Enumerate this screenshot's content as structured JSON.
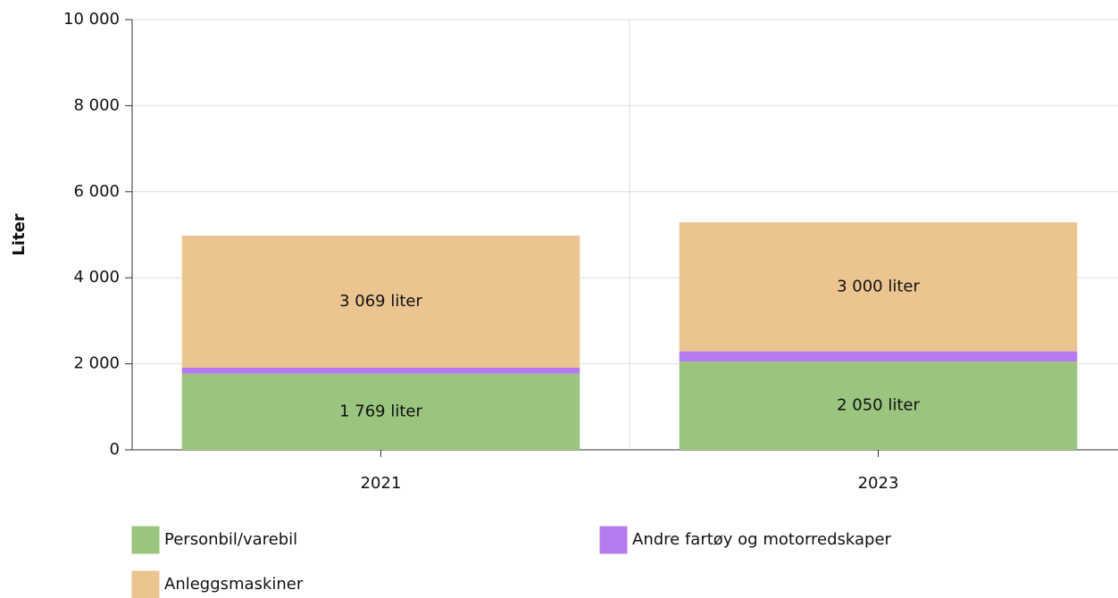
{
  "chart_data": {
    "type": "stacked_bar",
    "y_label": "Liter",
    "categories": [
      "2021",
      "2023"
    ],
    "series": [
      {
        "name": "Personbil/varebil",
        "color": "#9bc47f",
        "values": [
          1769,
          2050
        ],
        "value_labels": [
          "1 769 liter",
          "2 050 liter"
        ]
      },
      {
        "name": "Andre fartøy og motorredskaper",
        "color": "#b57bee",
        "values": [
          141,
          240
        ]
      },
      {
        "name": "Anleggsmaskiner",
        "color": "#ebc490",
        "values": [
          3069,
          3000
        ],
        "value_labels": [
          "3 069 liter",
          "3 000 liter"
        ]
      }
    ],
    "ylim": [
      0,
      10000
    ],
    "yticks": [
      0,
      {
        "value": 2000,
        "label": "2 000"
      },
      {
        "value": 4000,
        "label": "4 000"
      },
      {
        "value": 6000,
        "label": "6 000"
      },
      {
        "value": 8000,
        "label": "8 000"
      },
      {
        "value": 10000,
        "label": "10 000"
      }
    ],
    "grid": true
  }
}
